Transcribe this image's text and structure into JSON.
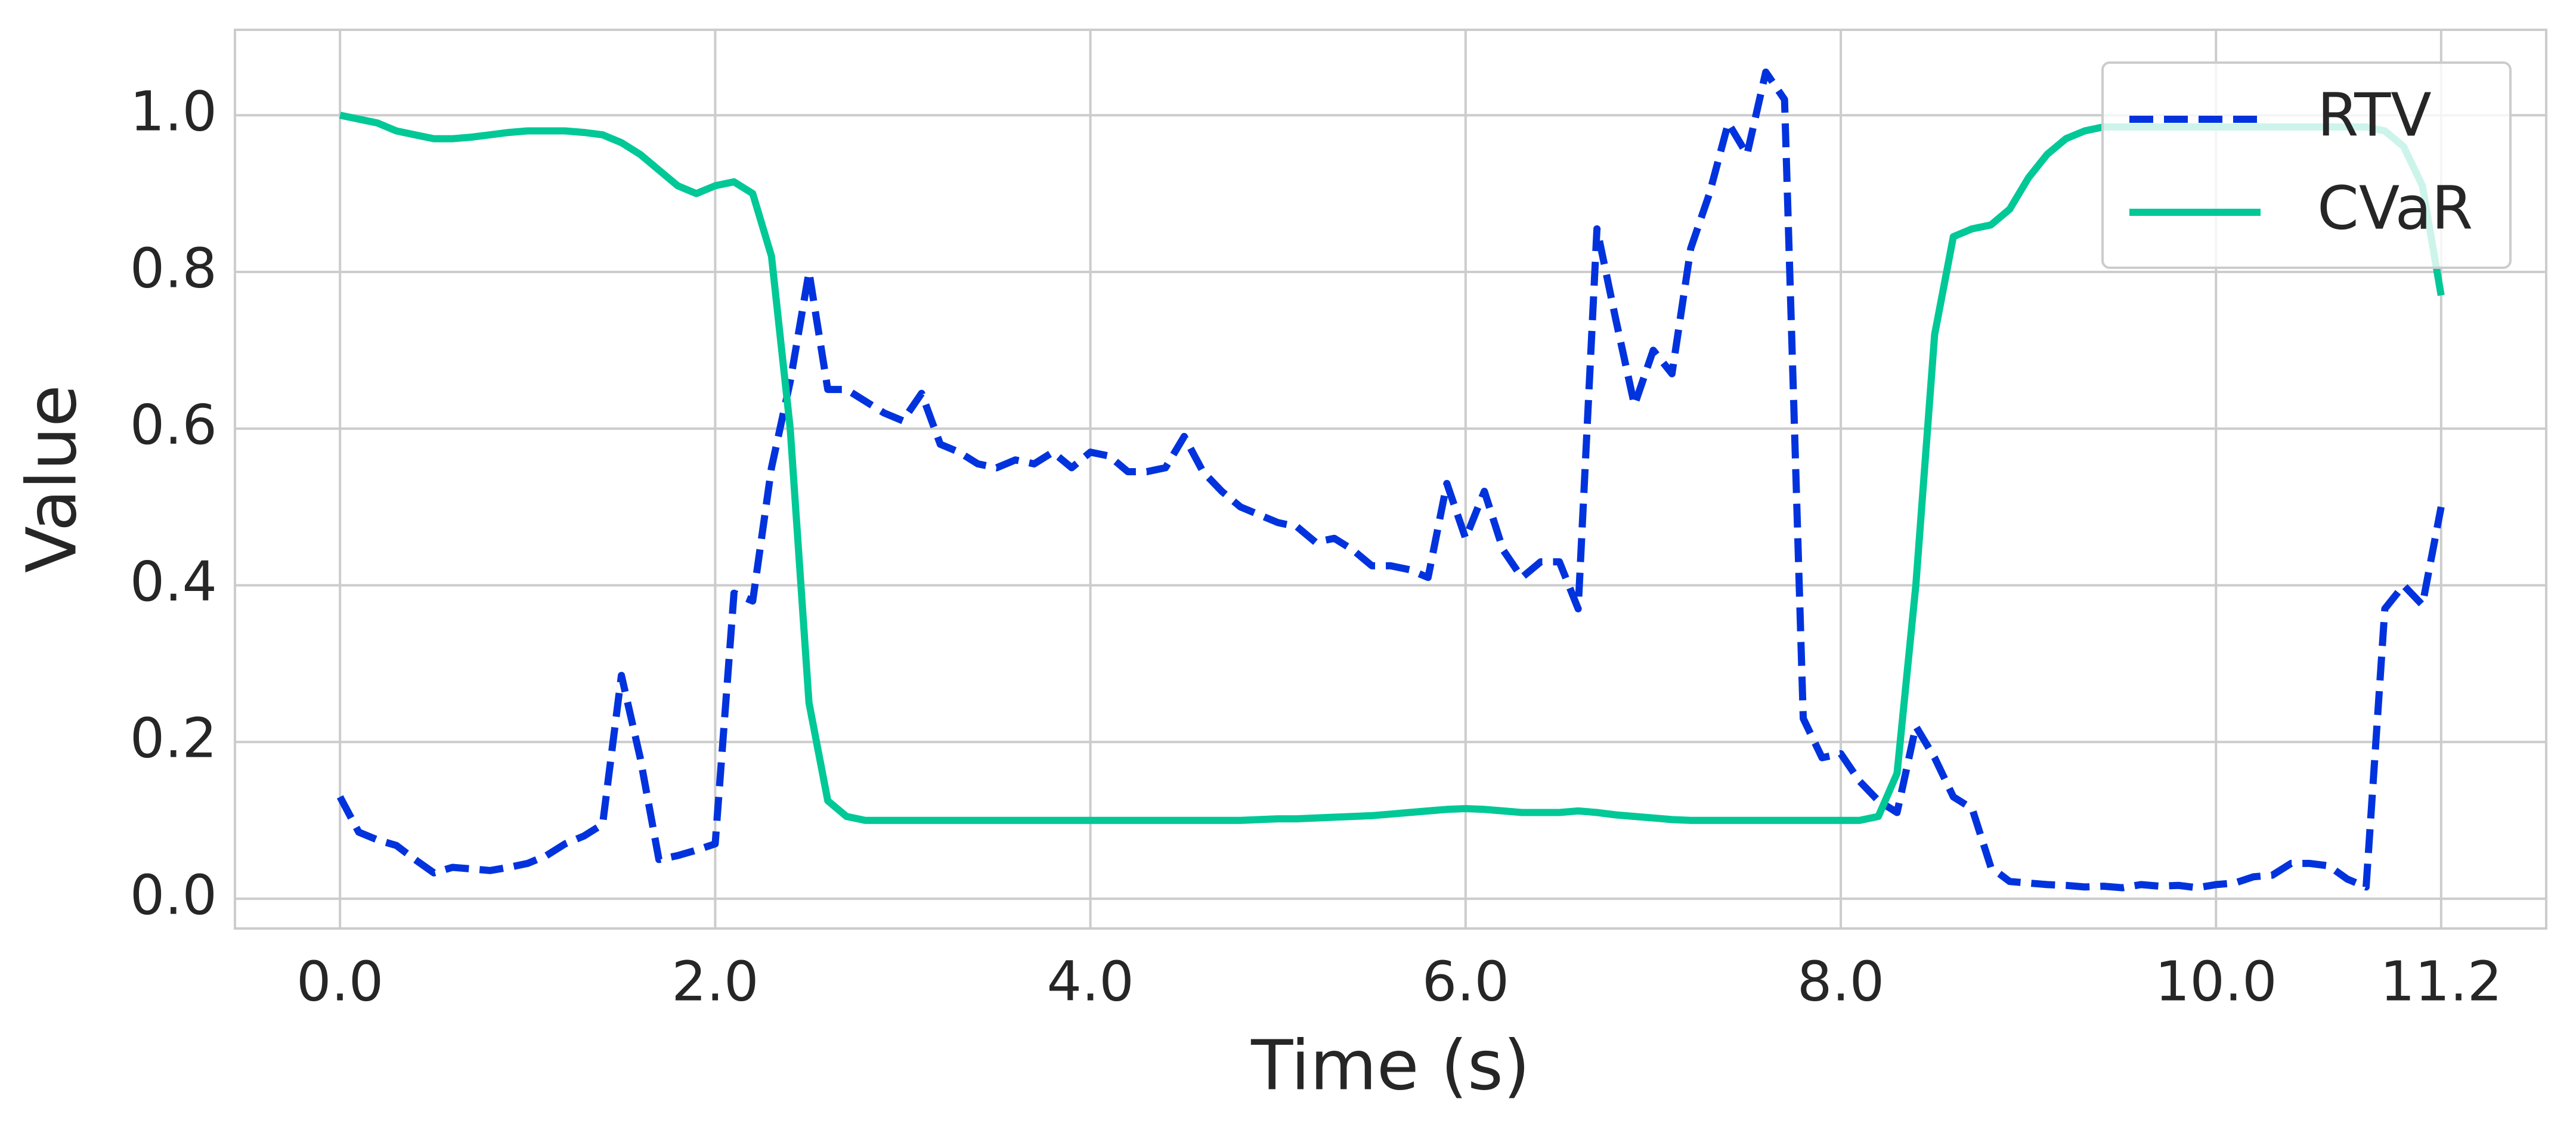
{
  "chart_data": {
    "type": "line",
    "xlabel": "Time (s)",
    "ylabel": "Value",
    "x": [
      0,
      0.1,
      0.2,
      0.3,
      0.4,
      0.5,
      0.6,
      0.7,
      0.8,
      0.9,
      1,
      1.1,
      1.2,
      1.3,
      1.4,
      1.5,
      1.6,
      1.7,
      1.8,
      1.9,
      2,
      2.1,
      2.2,
      2.3,
      2.4,
      2.5,
      2.6,
      2.7,
      2.8,
      2.9,
      3,
      3.1,
      3.2,
      3.3,
      3.4,
      3.5,
      3.6,
      3.7,
      3.8,
      3.9,
      4,
      4.1,
      4.2,
      4.3,
      4.4,
      4.5,
      4.6,
      4.7,
      4.8,
      4.9,
      5,
      5.1,
      5.2,
      5.3,
      5.4,
      5.5,
      5.6,
      5.7,
      5.8,
      5.9,
      6,
      6.1,
      6.2,
      6.3,
      6.4,
      6.5,
      6.6,
      6.7,
      6.8,
      6.9,
      7,
      7.1,
      7.2,
      7.3,
      7.4,
      7.5,
      7.6,
      7.7,
      7.8,
      7.9,
      8,
      8.1,
      8.2,
      8.3,
      8.4,
      8.5,
      8.6,
      8.7,
      8.8,
      8.9,
      9,
      9.1,
      9.2,
      9.3,
      9.4,
      9.5,
      9.6,
      9.7,
      9.8,
      9.9,
      10,
      10.1,
      10.2,
      10.3,
      10.4,
      10.5,
      10.6,
      10.7,
      10.8,
      10.9,
      11,
      11.1,
      11.2
    ],
    "series": [
      {
        "name": "RTV",
        "color": "#0033dd",
        "linestyle": "dashed",
        "values": [
          0.13,
          0.085,
          0.075,
          0.068,
          0.05,
          0.033,
          0.04,
          0.038,
          0.036,
          0.04,
          0.045,
          0.055,
          0.07,
          0.08,
          0.095,
          0.285,
          0.18,
          0.05,
          0.055,
          0.062,
          0.07,
          0.39,
          0.38,
          0.55,
          0.66,
          0.8,
          0.65,
          0.65,
          0.635,
          0.62,
          0.61,
          0.645,
          0.58,
          0.57,
          0.555,
          0.55,
          0.56,
          0.555,
          0.57,
          0.55,
          0.57,
          0.565,
          0.545,
          0.545,
          0.55,
          0.59,
          0.545,
          0.52,
          0.5,
          0.49,
          0.48,
          0.475,
          0.455,
          0.46,
          0.445,
          0.425,
          0.425,
          0.42,
          0.41,
          0.53,
          0.46,
          0.52,
          0.445,
          0.41,
          0.43,
          0.43,
          0.37,
          0.855,
          0.74,
          0.63,
          0.7,
          0.67,
          0.83,
          0.9,
          0.99,
          0.95,
          1.055,
          1.02,
          0.23,
          0.18,
          0.185,
          0.15,
          0.125,
          0.11,
          0.22,
          0.18,
          0.13,
          0.115,
          0.04,
          0.022,
          0.02,
          0.018,
          0.017,
          0.015,
          0.016,
          0.014,
          0.018,
          0.016,
          0.017,
          0.014,
          0.018,
          0.02,
          0.028,
          0.03,
          0.045,
          0.045,
          0.042,
          0.025,
          0.015,
          0.37,
          0.4,
          0.375,
          0.5
        ]
      },
      {
        "name": "CVaR",
        "color": "#00c896",
        "linestyle": "solid",
        "values": [
          1.0,
          0.995,
          0.99,
          0.98,
          0.975,
          0.97,
          0.97,
          0.972,
          0.975,
          0.978,
          0.98,
          0.98,
          0.98,
          0.978,
          0.975,
          0.965,
          0.95,
          0.93,
          0.91,
          0.9,
          0.91,
          0.915,
          0.9,
          0.82,
          0.6,
          0.25,
          0.125,
          0.105,
          0.1,
          0.1,
          0.1,
          0.1,
          0.1,
          0.1,
          0.1,
          0.1,
          0.1,
          0.1,
          0.1,
          0.1,
          0.1,
          0.1,
          0.1,
          0.1,
          0.1,
          0.1,
          0.1,
          0.1,
          0.1,
          0.101,
          0.102,
          0.102,
          0.103,
          0.104,
          0.105,
          0.106,
          0.108,
          0.11,
          0.112,
          0.114,
          0.115,
          0.114,
          0.112,
          0.11,
          0.11,
          0.11,
          0.112,
          0.11,
          0.107,
          0.105,
          0.103,
          0.101,
          0.1,
          0.1,
          0.1,
          0.1,
          0.1,
          0.1,
          0.1,
          0.1,
          0.1,
          0.1,
          0.105,
          0.16,
          0.4,
          0.72,
          0.845,
          0.855,
          0.86,
          0.88,
          0.92,
          0.95,
          0.97,
          0.98,
          0.985,
          0.985,
          0.985,
          0.985,
          0.985,
          0.985,
          0.985,
          0.985,
          0.985,
          0.985,
          0.985,
          0.985,
          0.985,
          0.985,
          0.985,
          0.98,
          0.96,
          0.91,
          0.77
        ]
      }
    ],
    "xlim": [
      -0.56,
      11.76
    ],
    "ylim": [
      -0.038,
      1.109
    ],
    "xticks": [
      {
        "value": 0,
        "label": "0.0"
      },
      {
        "value": 2,
        "label": "2.0"
      },
      {
        "value": 4,
        "label": "4.0"
      },
      {
        "value": 6,
        "label": "6.0"
      },
      {
        "value": 8,
        "label": "8.0"
      },
      {
        "value": 10,
        "label": "10.0"
      },
      11.2
    ],
    "yticks": [
      {
        "value": 0,
        "label": "0.0"
      },
      0.2,
      0.4,
      0.6,
      0.8,
      {
        "value": 1,
        "label": "1.0"
      }
    ],
    "grid": true,
    "legend": "upper right"
  }
}
